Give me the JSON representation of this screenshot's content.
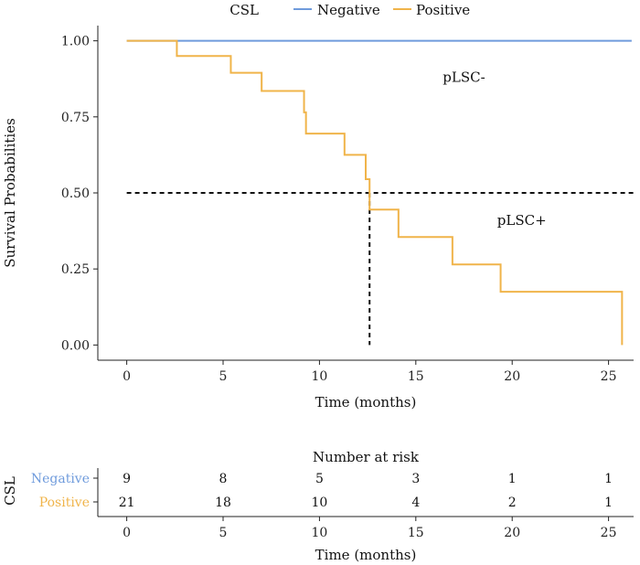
{
  "legend": {
    "title": "CSL",
    "items": [
      {
        "label": "Negative",
        "color": "#6f9bdc"
      },
      {
        "label": "Positive",
        "color": "#f0b44a"
      }
    ]
  },
  "chart_data": {
    "type": "line",
    "xlabel": "Time (months)",
    "ylabel": "Survival Probabilities",
    "xlim": [
      -1.5,
      26.3
    ],
    "ylim": [
      -0.05,
      1.05
    ],
    "x_ticks": [
      0,
      5,
      10,
      15,
      20,
      25
    ],
    "x_tick_labels": [
      "0",
      "5",
      "10",
      "15",
      "20",
      "25"
    ],
    "y_ticks": [
      0,
      0.25,
      0.5,
      0.75,
      1.0
    ],
    "y_tick_labels": [
      "0.00",
      "0.25",
      "0.50",
      "0.75",
      "1.00"
    ],
    "grid": false,
    "legend_position": "top",
    "series": [
      {
        "name": "Negative",
        "color": "#6f9bdc",
        "step": true,
        "x": [
          0,
          26.2
        ],
        "y": [
          1.0,
          1.0
        ]
      },
      {
        "name": "Positive",
        "color": "#f0b44a",
        "step": true,
        "x": [
          0,
          2.6,
          5.4,
          7.0,
          9.2,
          9.3,
          11.3,
          12.4,
          12.6,
          14.1,
          16.9,
          19.4,
          25.7
        ],
        "y": [
          1.0,
          0.95,
          0.895,
          0.835,
          0.765,
          0.695,
          0.625,
          0.545,
          0.445,
          0.355,
          0.265,
          0.175,
          0.0
        ]
      }
    ],
    "median_line": {
      "y": 0.5,
      "x": 12.6
    },
    "annotations": [
      {
        "text": "pLSC-",
        "x": 17.5,
        "y": 0.88
      },
      {
        "text": "pLSC+",
        "x": 20.5,
        "y": 0.41
      }
    ]
  },
  "risk_table": {
    "title": "Number at risk",
    "strata_label": "CSL",
    "xlabel": "Time (months)",
    "times": [
      0,
      5,
      10,
      15,
      20,
      25
    ],
    "x_tick_labels": [
      "0",
      "5",
      "10",
      "15",
      "20",
      "25"
    ],
    "rows": [
      {
        "label": "Negative",
        "color": "#6f9bdc",
        "counts": [
          "9",
          "8",
          "5",
          "3",
          "1",
          "1"
        ]
      },
      {
        "label": "Positive",
        "color": "#f0b44a",
        "counts": [
          "21",
          "18",
          "10",
          "4",
          "2",
          "1"
        ]
      }
    ]
  }
}
